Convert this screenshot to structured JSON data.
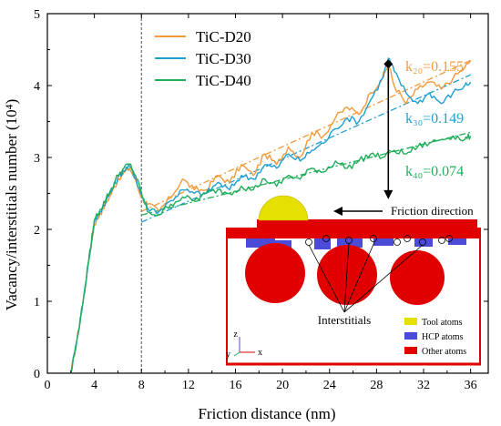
{
  "chart_data": {
    "type": "line",
    "xlabel": "Friction distance (nm)",
    "ylabel": "Vacancy/interstitials number (10⁴)",
    "xlim": [
      0,
      37.5
    ],
    "ylim": [
      0,
      5
    ],
    "x_ticks": [
      "0",
      "4",
      "8",
      "12",
      "16",
      "20",
      "24",
      "28",
      "32",
      "36"
    ],
    "y_ticks": [
      "0",
      "1",
      "2",
      "3",
      "4",
      "5"
    ],
    "grid": false,
    "legend_position": "top-left",
    "vertical_reference_line_x": 8,
    "shared_rise_x": [
      2.0,
      2.5,
      3.0,
      3.5,
      4.0,
      4.5,
      5.0,
      5.5,
      6.0,
      6.5,
      7.0,
      7.5,
      8.0
    ],
    "shared_rise_y": [
      0.0,
      0.45,
      0.95,
      1.55,
      2.1,
      2.25,
      2.4,
      2.55,
      2.72,
      2.82,
      2.88,
      2.72,
      2.48
    ],
    "series": [
      {
        "name": "TiC-D20",
        "color": "#f39a3c",
        "x": [
          8.5,
          9.5,
          10.5,
          11.5,
          12.5,
          13.5,
          14.5,
          15.5,
          16.5,
          17.5,
          18.5,
          19.5,
          20.5,
          21.5,
          22.5,
          23.5,
          24.5,
          25.5,
          26.5,
          27.5,
          28.5,
          29.0,
          29.5,
          30.5,
          31.5,
          32.5,
          33.5,
          34.5,
          35.5,
          36.0
        ],
        "y": [
          2.35,
          2.25,
          2.45,
          2.7,
          2.55,
          2.55,
          2.75,
          2.65,
          2.9,
          2.75,
          3.05,
          2.9,
          3.15,
          3.0,
          3.35,
          3.3,
          3.55,
          3.7,
          3.6,
          3.9,
          4.1,
          4.3,
          4.0,
          3.75,
          3.95,
          4.05,
          3.95,
          4.1,
          4.25,
          4.35
        ],
        "k_label": "k₂₀=0.155"
      },
      {
        "name": "TiC-D30",
        "color": "#1e9fd0",
        "x": [
          8.5,
          9.5,
          10.5,
          11.5,
          12.5,
          13.5,
          14.5,
          15.5,
          16.5,
          17.5,
          18.5,
          19.5,
          20.5,
          21.5,
          22.5,
          23.5,
          24.5,
          25.5,
          26.5,
          27.5,
          28.5,
          29.0,
          29.5,
          30.5,
          31.5,
          32.5,
          33.5,
          34.5,
          35.5,
          36.0
        ],
        "y": [
          2.3,
          2.25,
          2.4,
          2.55,
          2.5,
          2.5,
          2.65,
          2.55,
          2.75,
          2.7,
          2.9,
          2.85,
          3.05,
          2.95,
          3.1,
          3.2,
          3.4,
          3.55,
          3.5,
          3.8,
          4.1,
          4.38,
          4.2,
          3.9,
          3.75,
          3.9,
          3.75,
          3.9,
          4.0,
          4.05
        ],
        "k_label": "k₃₀=0.149"
      },
      {
        "name": "TiC-D40",
        "color": "#1fae5a",
        "x": [
          8.5,
          9.5,
          10.5,
          11.5,
          12.5,
          13.5,
          14.5,
          15.5,
          16.5,
          17.5,
          18.5,
          19.5,
          20.5,
          21.5,
          22.5,
          23.5,
          24.5,
          25.5,
          26.5,
          27.5,
          28.5,
          29.5,
          30.5,
          31.5,
          32.5,
          33.5,
          34.5,
          35.5,
          36.0
        ],
        "y": [
          2.25,
          2.2,
          2.35,
          2.45,
          2.4,
          2.5,
          2.55,
          2.5,
          2.6,
          2.55,
          2.7,
          2.6,
          2.75,
          2.7,
          2.85,
          2.8,
          2.95,
          2.85,
          2.95,
          3.05,
          3.0,
          3.1,
          3.05,
          3.15,
          3.2,
          3.25,
          3.3,
          3.25,
          3.3
        ],
        "k_label": "k₄₀=0.074"
      }
    ],
    "fit_lines": [
      {
        "name": "TiC-D20",
        "color": "#f39a3c",
        "x": [
          8,
          36
        ],
        "y": [
          2.25,
          4.35
        ]
      },
      {
        "name": "TiC-D30",
        "color": "#1e9fd0",
        "x": [
          8,
          36
        ],
        "y": [
          2.1,
          4.15
        ]
      },
      {
        "name": "TiC-D40",
        "color": "#1fae5a",
        "x": [
          8,
          36
        ],
        "y": [
          2.2,
          3.35
        ]
      }
    ],
    "marker_x": 29,
    "marker_y": 4.3,
    "arrow_to_y": 2.42,
    "inset": {
      "friction_direction_label": "Friction direction",
      "interstitials_label": "Interstitials",
      "legend": [
        {
          "label": "Tool atoms",
          "color": "#e6e000"
        },
        {
          "label": "HCP atoms",
          "color": "#4b4bd8"
        },
        {
          "label": "Other atoms",
          "color": "#e00000"
        }
      ],
      "axis_labels": {
        "z": "z",
        "y": "y",
        "x": "x"
      }
    }
  }
}
